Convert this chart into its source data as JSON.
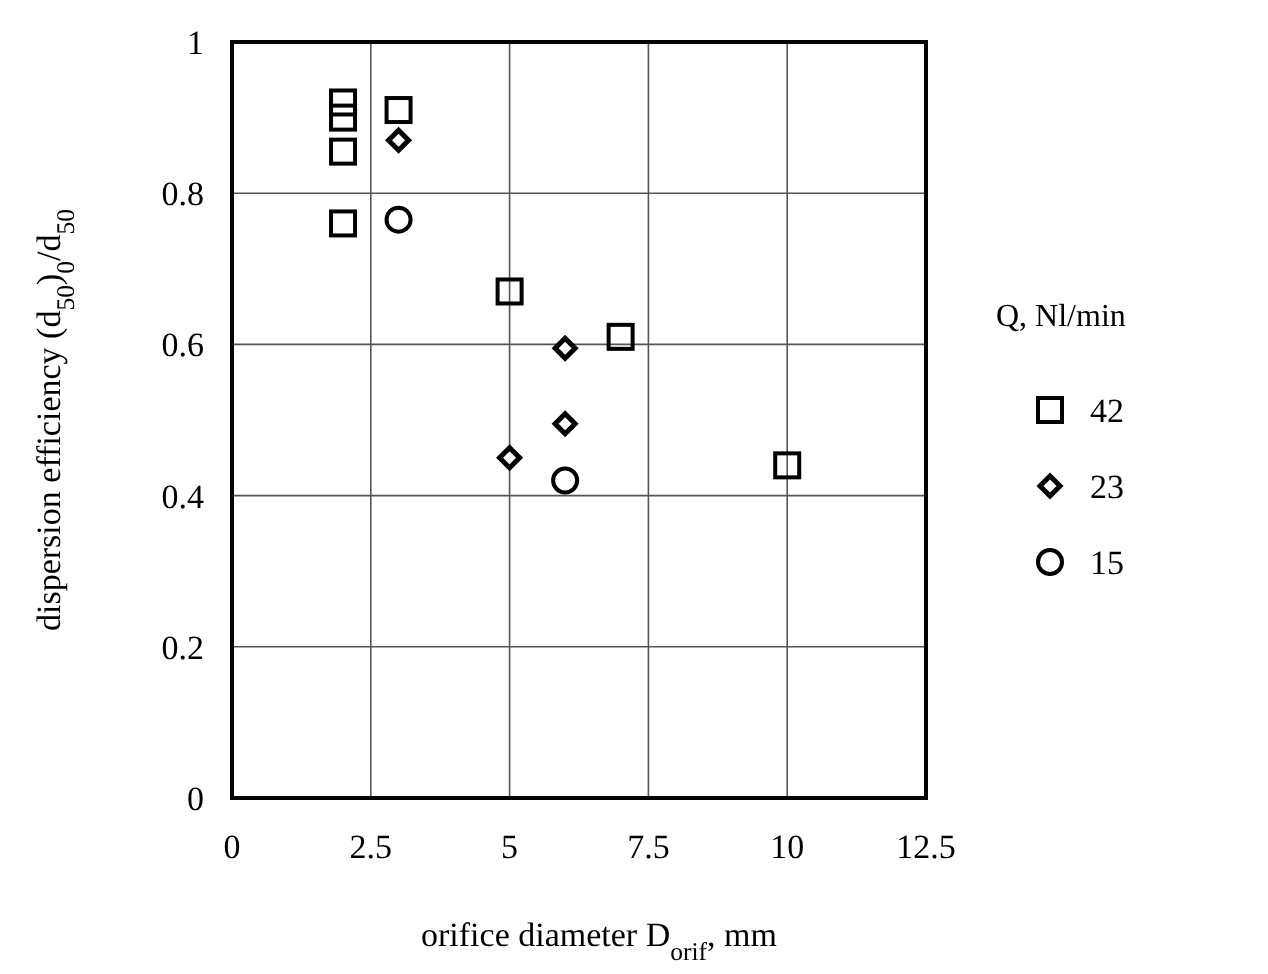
{
  "chart_data": {
    "type": "scatter",
    "xlabel": "orifice diameter  D$_{orif}$, mm",
    "ylabel": "dispersion efficiency  (d$_{50}$)$_{0}$/d$_{50}$",
    "legend_title": "Q, Nl/min",
    "legend": "right",
    "xlim": [
      0,
      12.5
    ],
    "xticks": [
      0,
      2.5,
      5,
      7.5,
      10,
      12.5
    ],
    "ylim": [
      0,
      1
    ],
    "yticks": [
      0,
      0.2,
      0.4,
      0.6,
      0.8,
      1
    ],
    "grid": true,
    "series": [
      {
        "name": "42",
        "color": "#000000",
        "marker": "square",
        "x": [
          2,
          2,
          2,
          2,
          3,
          5,
          7,
          10
        ],
        "values": [
          0.92,
          0.9,
          0.855,
          0.76,
          0.91,
          0.67,
          0.61,
          0.44
        ]
      },
      {
        "name": "23",
        "color": "#000000",
        "marker": "diamond",
        "x": [
          3,
          5,
          6,
          6
        ],
        "values": [
          0.87,
          0.45,
          0.595,
          0.495
        ]
      },
      {
        "name": "15",
        "color": "#000000",
        "marker": "circle",
        "x": [
          3,
          6
        ],
        "values": [
          0.765,
          0.42
        ]
      }
    ]
  }
}
